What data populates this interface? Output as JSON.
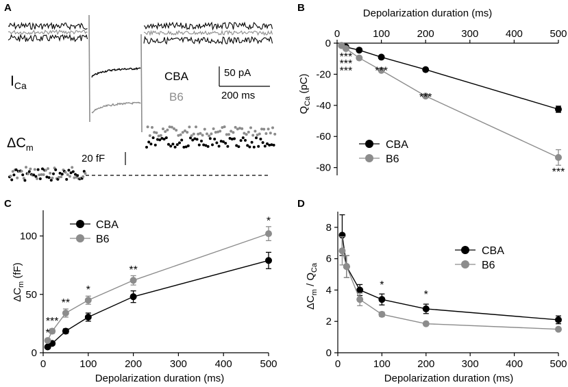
{
  "colors": {
    "cba": "#000000",
    "b6": "#8c8c8c",
    "axis": "#000000"
  },
  "panel_a": {
    "label": "A",
    "ica_label": "I",
    "ica_sub": "Ca",
    "dcm_label": "ΔC",
    "dcm_sub": "m",
    "legend_cba": "CBA",
    "legend_b6": "B6",
    "scale_pa": "50 pA",
    "scale_ms": "200 ms",
    "scale_ff": "20 fF"
  },
  "chart_data": [
    {
      "panel": "B",
      "type": "line",
      "xlabel": "Depolarization duration (ms)",
      "x_axis_position": "top",
      "ylabel": "Q",
      "ylabel_sub": "Ca",
      "ylabel_unit": " (pC)",
      "xlim": [
        0,
        500
      ],
      "ylim": [
        -85,
        0
      ],
      "xticks": [
        "0",
        "100",
        "200",
        "300",
        "400",
        "500"
      ],
      "xtick_values": [
        0,
        100,
        200,
        300,
        400,
        500
      ],
      "yticks": [
        "0",
        "-20",
        "-40",
        "-60",
        "-80"
      ],
      "ytick_values": [
        0,
        -20,
        -40,
        -60,
        -80
      ],
      "x": [
        10,
        20,
        50,
        100,
        200,
        500
      ],
      "series": [
        {
          "name": "CBA",
          "key": "cba",
          "values": [
            -1.5,
            -2.5,
            -4.5,
            -9,
            -17,
            -42.5
          ],
          "errors": [
            0.3,
            0.3,
            0.5,
            0.6,
            0.8,
            2
          ]
        },
        {
          "name": "B6",
          "key": "b6",
          "values": [
            -1.5,
            -3.5,
            -9.5,
            -17.5,
            -34,
            -73.5
          ],
          "errors": [
            0.3,
            0.4,
            0.6,
            0.8,
            1.2,
            5
          ]
        }
      ],
      "annotations": [
        {
          "text": "***",
          "x": 20,
          "y": -11
        },
        {
          "text": "***",
          "x": 20,
          "y": -15.5
        },
        {
          "text": "***",
          "x": 20,
          "y": -20
        },
        {
          "text": "***",
          "x": 100,
          "y": -20
        },
        {
          "text": "***",
          "x": 200,
          "y": -37
        },
        {
          "text": "***",
          "x": 500,
          "y": -85
        }
      ],
      "legend": "middle-left"
    },
    {
      "panel": "C",
      "type": "line",
      "xlabel": "Depolarization duration (ms)",
      "ylabel": "ΔC",
      "ylabel_sub": "m",
      "ylabel_unit": " (fF)",
      "xlim": [
        0,
        500
      ],
      "ylim": [
        0,
        122
      ],
      "xticks": [
        "0",
        "100",
        "200",
        "300",
        "400",
        "500"
      ],
      "xtick_values": [
        0,
        100,
        200,
        300,
        400,
        500
      ],
      "yticks": [
        "0",
        "50",
        "100"
      ],
      "ytick_values": [
        0,
        50,
        100
      ],
      "x": [
        10,
        20,
        50,
        100,
        200,
        500
      ],
      "series": [
        {
          "name": "CBA",
          "key": "cba",
          "values": [
            5,
            8,
            18.5,
            30.5,
            48,
            79
          ],
          "errors": [
            1,
            1.5,
            2,
            3.5,
            5,
            7
          ]
        },
        {
          "name": "B6",
          "key": "b6",
          "values": [
            10.5,
            18.5,
            34,
            45,
            62,
            102
          ],
          "errors": [
            1.5,
            2,
            3.5,
            3.5,
            4,
            6
          ]
        }
      ],
      "annotations": [
        {
          "text": "*",
          "x": 10,
          "y": 14
        },
        {
          "text": "***",
          "x": 20,
          "y": 24
        },
        {
          "text": "**",
          "x": 50,
          "y": 40
        },
        {
          "text": "*",
          "x": 100,
          "y": 51
        },
        {
          "text": "**",
          "x": 200,
          "y": 68
        },
        {
          "text": "*",
          "x": 500,
          "y": 110
        }
      ],
      "legend": "top-left"
    },
    {
      "panel": "D",
      "type": "line",
      "xlabel": "Depolarization duration (ms)",
      "ylabel": "ΔC",
      "ylabel_sub": "m",
      "ylabel_mid": " / Q",
      "ylabel_sub2": "Ca",
      "xlim": [
        0,
        500
      ],
      "ylim": [
        0,
        9
      ],
      "xticks": [
        "0",
        "100",
        "200",
        "300",
        "400",
        "500"
      ],
      "xtick_values": [
        0,
        100,
        200,
        300,
        400,
        500
      ],
      "yticks": [
        "0",
        "2",
        "4",
        "6",
        "8"
      ],
      "ytick_values": [
        0,
        2,
        4,
        6,
        8
      ],
      "x": [
        10,
        20,
        50,
        100,
        200,
        500
      ],
      "series": [
        {
          "name": "CBA",
          "key": "cba",
          "values": [
            7.5,
            5.5,
            4,
            3.4,
            2.8,
            2.1
          ],
          "errors": [
            1.3,
            0.7,
            0.35,
            0.35,
            0.3,
            0.25
          ]
        },
        {
          "name": "B6",
          "key": "b6",
          "values": [
            6.5,
            5.5,
            3.4,
            2.45,
            1.85,
            1.5
          ],
          "errors": [
            0.9,
            0.7,
            0.4,
            0.15,
            0.1,
            0.1
          ]
        }
      ],
      "annotations": [
        {
          "text": "*",
          "x": 100,
          "y": 4.1
        },
        {
          "text": "*",
          "x": 200,
          "y": 3.5
        }
      ],
      "legend": "top-right"
    }
  ]
}
